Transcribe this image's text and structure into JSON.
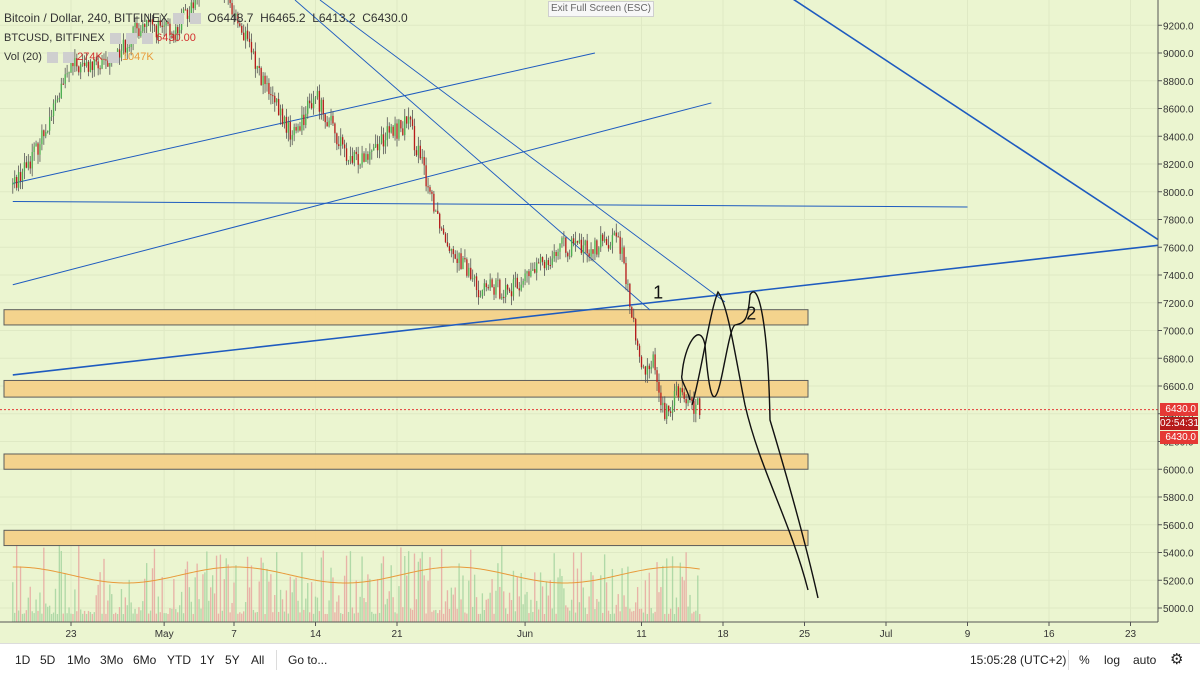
{
  "legend": {
    "title": "Bitcoin / Dollar, 240, BITFINEX",
    "o": "O6448.7",
    "h": "H6465.2",
    "l": "L6413.2",
    "c": "C6430.0",
    "symbol": "BTCUSD, BITFINEX",
    "symbol_value": "6430.00",
    "vol_label": "Vol (20)",
    "vol_value1": "274K",
    "vol_value2": "1047K"
  },
  "exit_fullscreen": "Exit Full Screen (ESC)",
  "price_tags": {
    "last": "6430.0",
    "countdown": "02:54:31",
    "close": "6430.0"
  },
  "toolbar": {
    "ranges": [
      "1D",
      "5D",
      "1Mo",
      "3Mo",
      "6Mo",
      "YTD",
      "1Y",
      "5Y",
      "All"
    ],
    "goto": "Go to...",
    "time": "15:05:28 (UTC+2)",
    "percent": "%",
    "log": "log",
    "auto": "auto"
  },
  "colors": {
    "background": "#ebf5d0",
    "candle_up": "#4caf50",
    "candle_down": "#b71c1c",
    "trendline": "#1e5bbf",
    "zone": "#f5d28a"
  },
  "chart_data": {
    "type": "candlestick",
    "interval": "240",
    "y_axis": {
      "ticks": [
        5000,
        5200,
        5400,
        5600,
        5800,
        6000,
        6200,
        6400,
        6600,
        6800,
        7000,
        7200,
        7400,
        7600,
        7800,
        8000,
        8200,
        8400,
        8600,
        8800,
        9000,
        9200
      ],
      "range": [
        4900,
        9300
      ]
    },
    "x_axis": {
      "ticks": [
        "23",
        "May",
        "7",
        "14",
        "21",
        "Jun",
        "11",
        "18",
        "25",
        "Jul",
        "9",
        "16",
        "23"
      ]
    },
    "price_anchors": [
      {
        "date": "Apr 18",
        "close": 8050
      },
      {
        "date": "Apr 20",
        "close": 8300
      },
      {
        "date": "Apr 23",
        "close": 8900
      },
      {
        "date": "Apr 26",
        "close": 8900
      },
      {
        "date": "Apr 29",
        "close": 9200
      },
      {
        "date": "May 2",
        "close": 9150
      },
      {
        "date": "May 5",
        "close": 9600
      },
      {
        "date": "May 7",
        "close": 9300
      },
      {
        "date": "May 10",
        "close": 8700
      },
      {
        "date": "May 12",
        "close": 8400
      },
      {
        "date": "May 14",
        "close": 8700
      },
      {
        "date": "May 17",
        "close": 8200
      },
      {
        "date": "May 20",
        "close": 8400
      },
      {
        "date": "May 22",
        "close": 8500
      },
      {
        "date": "May 25",
        "close": 7700
      },
      {
        "date": "May 28",
        "close": 7300
      },
      {
        "date": "May 31",
        "close": 7300
      },
      {
        "date": "Jun 4",
        "close": 7600
      },
      {
        "date": "Jun 7",
        "close": 7600
      },
      {
        "date": "Jun 9",
        "close": 7700
      },
      {
        "date": "Jun 10",
        "close": 7200
      },
      {
        "date": "Jun 11",
        "close": 6700
      },
      {
        "date": "Jun 12",
        "close": 6800
      },
      {
        "date": "Jun 13",
        "close": 6350
      },
      {
        "date": "Jun 14",
        "close": 6600
      },
      {
        "date": "Jun 15",
        "close": 6500
      },
      {
        "date": "Jun 16",
        "close": 6430
      }
    ],
    "current_price": 6430.0,
    "zones": [
      {
        "from": 7040,
        "to": 7150
      },
      {
        "from": 6520,
        "to": 6640
      },
      {
        "from": 6000,
        "to": 6110
      },
      {
        "from": 5450,
        "to": 5560
      }
    ],
    "trendlines": [
      {
        "from": {
          "date": "Jun 22",
          "price": 9500
        },
        "to": {
          "date": "Jul 26",
          "price": 7620
        }
      },
      {
        "from": {
          "date": "Apr 18",
          "price": 6680
        },
        "to": {
          "date": "Jul 26",
          "price": 7620
        }
      },
      {
        "from": {
          "date": "Apr 18",
          "price": 8060
        },
        "to": {
          "date": "Jun 7",
          "price": 9000
        }
      },
      {
        "from": {
          "date": "Apr 18",
          "price": 7330
        },
        "to": {
          "date": "Jun 17",
          "price": 8640
        }
      },
      {
        "from": {
          "date": "Apr 18",
          "price": 7930
        },
        "to": {
          "date": "Jul 9",
          "price": 7890
        }
      }
    ],
    "annotations": [
      {
        "text": "1",
        "date": "Jun 12",
        "price": 7230
      },
      {
        "text": "2",
        "date": "Jun 20",
        "price": 7080
      }
    ]
  }
}
